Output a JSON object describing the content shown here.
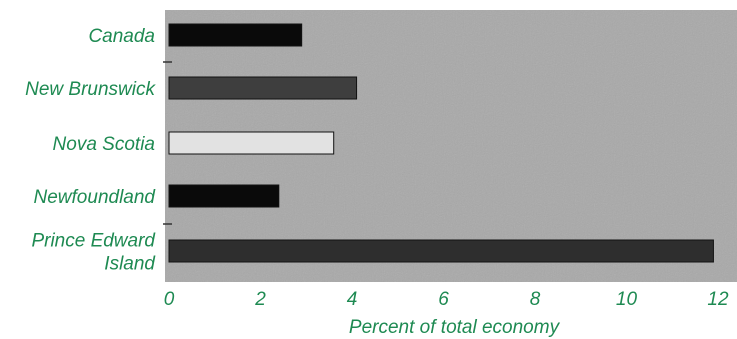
{
  "chart_data": {
    "type": "bar",
    "orientation": "horizontal",
    "title": "",
    "xlabel": "Percent of total economy",
    "ylabel": "",
    "xlim": [
      0,
      12
    ],
    "xticks": [
      "0",
      "2",
      "4",
      "6",
      "8",
      "10",
      "12"
    ],
    "grid": false,
    "categories": [
      {
        "label": "Canada",
        "lines": [
          "Canada"
        ]
      },
      {
        "label": "New Brunswick",
        "lines": [
          "New Brunswick"
        ]
      },
      {
        "label": "Nova Scotia",
        "lines": [
          "Nova Scotia"
        ]
      },
      {
        "label": "Newfoundland",
        "lines": [
          "Newfoundland"
        ]
      },
      {
        "label": "Prince Edward Island",
        "lines": [
          "Prince Edward",
          "Island"
        ]
      }
    ],
    "values": [
      2.9,
      4.1,
      3.6,
      2.4,
      11.9
    ],
    "bar_colors": [
      "#0a0a0a",
      "#3e3e3e",
      "#e2e2e2",
      "#0a0a0a",
      "#2e2e2e"
    ],
    "plot_background": "#a9a9a9",
    "label_color": "#1e8a52"
  }
}
